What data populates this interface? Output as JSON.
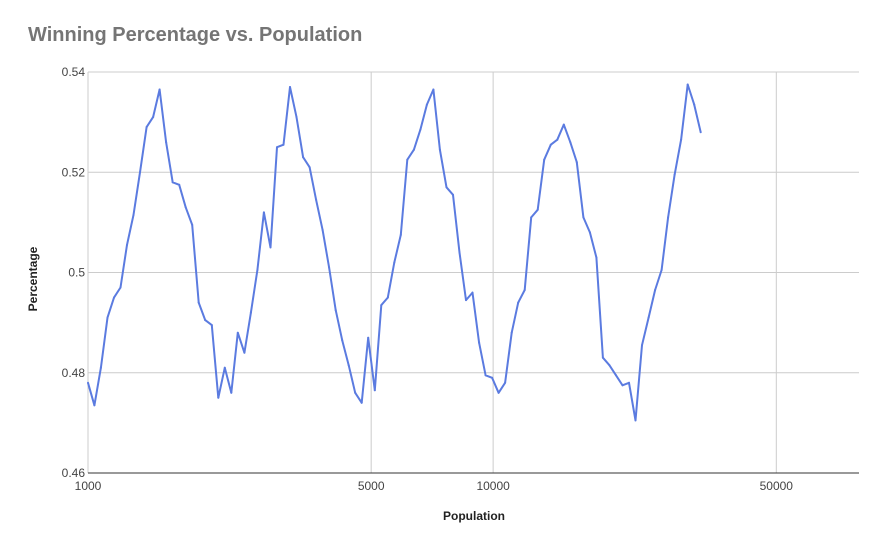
{
  "chart_data": {
    "type": "line",
    "title": "Winning Percentage vs. Population",
    "xlabel": "Population",
    "ylabel": "Percentage",
    "x_scale": "log",
    "xlim": [
      1000,
      80000
    ],
    "ylim": [
      0.46,
      0.54
    ],
    "x_ticks": [
      {
        "value": 1000,
        "label": "1000"
      },
      {
        "value": 5000,
        "label": "5000"
      },
      {
        "value": 10000,
        "label": "10000"
      },
      {
        "value": 50000,
        "label": "50000"
      }
    ],
    "y_ticks": [
      {
        "value": 0.46,
        "label": "0.46"
      },
      {
        "value": 0.48,
        "label": "0.48"
      },
      {
        "value": 0.5,
        "label": "0.5"
      },
      {
        "value": 0.52,
        "label": "0.52"
      },
      {
        "value": 0.54,
        "label": "0.54"
      }
    ],
    "grid": true,
    "legend": "none",
    "series": [
      {
        "color": "#5b7be0",
        "points": [
          [
            1000,
            0.478
          ],
          [
            1037,
            0.4735
          ],
          [
            1076,
            0.481
          ],
          [
            1117,
            0.491
          ],
          [
            1159,
            0.495
          ],
          [
            1203,
            0.497
          ],
          [
            1248,
            0.5055
          ],
          [
            1295,
            0.5115
          ],
          [
            1344,
            0.52
          ],
          [
            1395,
            0.529
          ],
          [
            1448,
            0.531
          ],
          [
            1502,
            0.5365
          ],
          [
            1559,
            0.526
          ],
          [
            1618,
            0.518
          ],
          [
            1679,
            0.5175
          ],
          [
            1742,
            0.513
          ],
          [
            1808,
            0.5095
          ],
          [
            1876,
            0.494
          ],
          [
            1947,
            0.4905
          ],
          [
            2021,
            0.4895
          ],
          [
            2097,
            0.475
          ],
          [
            2176,
            0.481
          ],
          [
            2258,
            0.476
          ],
          [
            2343,
            0.488
          ],
          [
            2432,
            0.484
          ],
          [
            2524,
            0.492
          ],
          [
            2619,
            0.5005
          ],
          [
            2718,
            0.512
          ],
          [
            2821,
            0.505
          ],
          [
            2927,
            0.525
          ],
          [
            3038,
            0.5255
          ],
          [
            3152,
            0.537
          ],
          [
            3271,
            0.531
          ],
          [
            3395,
            0.523
          ],
          [
            3523,
            0.521
          ],
          [
            3656,
            0.5145
          ],
          [
            3794,
            0.5085
          ],
          [
            3937,
            0.501
          ],
          [
            4086,
            0.4925
          ],
          [
            4240,
            0.4865
          ],
          [
            4400,
            0.4815
          ],
          [
            4566,
            0.476
          ],
          [
            4738,
            0.474
          ],
          [
            4917,
            0.487
          ],
          [
            5103,
            0.4765
          ],
          [
            5295,
            0.4935
          ],
          [
            5495,
            0.495
          ],
          [
            5703,
            0.502
          ],
          [
            5918,
            0.5075
          ],
          [
            6141,
            0.5225
          ],
          [
            6373,
            0.5245
          ],
          [
            6614,
            0.5285
          ],
          [
            6863,
            0.5335
          ],
          [
            7122,
            0.5365
          ],
          [
            7391,
            0.5245
          ],
          [
            7670,
            0.517
          ],
          [
            7960,
            0.5155
          ],
          [
            8260,
            0.504
          ],
          [
            8572,
            0.4945
          ],
          [
            8895,
            0.496
          ],
          [
            9231,
            0.486
          ],
          [
            9580,
            0.4795
          ],
          [
            9941,
            0.479
          ],
          [
            10316,
            0.476
          ],
          [
            10706,
            0.478
          ],
          [
            11110,
            0.488
          ],
          [
            11529,
            0.494
          ],
          [
            11965,
            0.4965
          ],
          [
            12416,
            0.511
          ],
          [
            12885,
            0.5125
          ],
          [
            13371,
            0.5225
          ],
          [
            13876,
            0.5255
          ],
          [
            14400,
            0.5265
          ],
          [
            14943,
            0.5295
          ],
          [
            15507,
            0.526
          ],
          [
            16093,
            0.522
          ],
          [
            16700,
            0.511
          ],
          [
            17331,
            0.508
          ],
          [
            17985,
            0.503
          ],
          [
            18664,
            0.483
          ],
          [
            19368,
            0.4815
          ],
          [
            20099,
            0.4795
          ],
          [
            20858,
            0.4775
          ],
          [
            21645,
            0.478
          ],
          [
            22462,
            0.4705
          ],
          [
            23310,
            0.4855
          ],
          [
            24190,
            0.491
          ],
          [
            25103,
            0.4965
          ],
          [
            26051,
            0.5005
          ],
          [
            27034,
            0.511
          ],
          [
            28055,
            0.5195
          ],
          [
            29113,
            0.5265
          ],
          [
            30212,
            0.5375
          ],
          [
            31353,
            0.5335
          ],
          [
            32536,
            0.528
          ]
        ]
      }
    ]
  }
}
